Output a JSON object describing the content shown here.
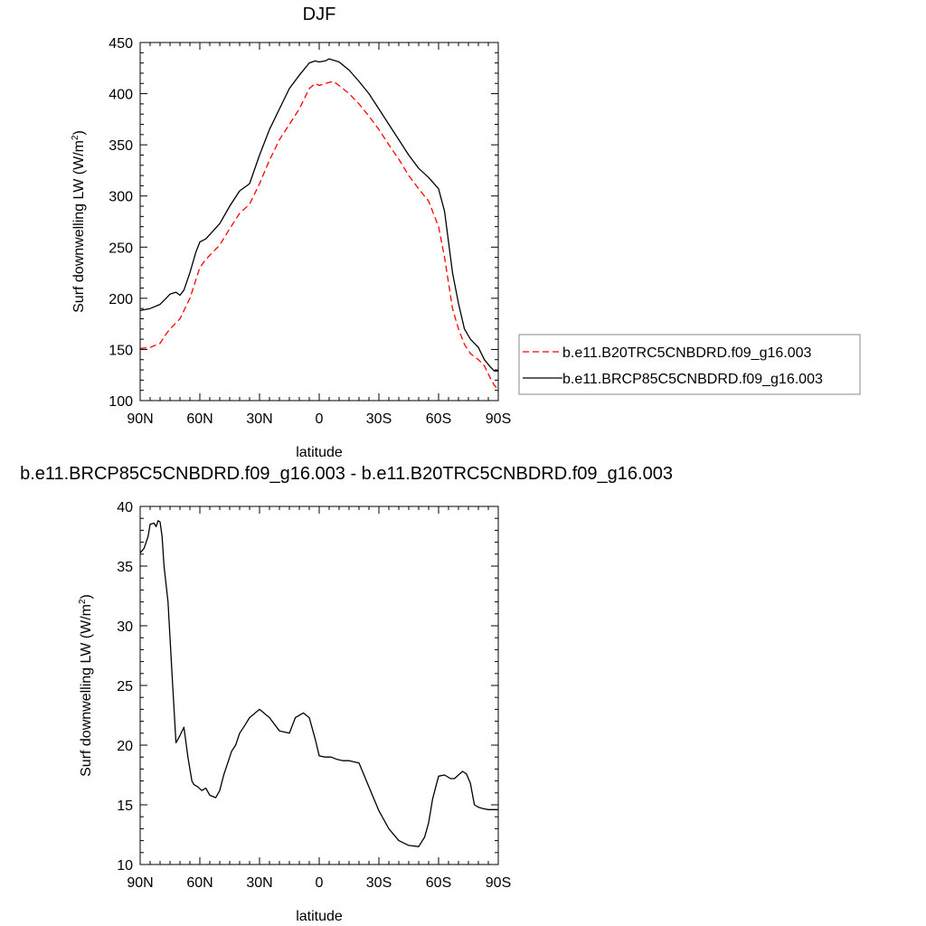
{
  "chart_data": [
    {
      "type": "line",
      "title": "DJF",
      "xlabel": "latitude",
      "ylabel": "Surf downwelling LW (W/m",
      "ylabel_sup": "2",
      "ylabel_tail": ")",
      "xlim": [
        -90,
        90
      ],
      "ylim": [
        100,
        450
      ],
      "xticks": [
        -90,
        -60,
        -30,
        0,
        30,
        60,
        90
      ],
      "xticklabels": [
        "90N",
        "60N",
        "30N",
        "0",
        "30S",
        "60S",
        "90S"
      ],
      "yticks": [
        100,
        150,
        200,
        250,
        300,
        350,
        400,
        450
      ],
      "yticklabels": [
        "100",
        "150",
        "200",
        "250",
        "300",
        "350",
        "400",
        "450"
      ],
      "legend_position": "right",
      "series": [
        {
          "name": "b.e11.B20TRC5CNBDRD.f09_g16.003",
          "color": "#ff0000",
          "dash": "dashed",
          "x": [
            -90,
            -85,
            -80,
            -77,
            -75,
            -70,
            -65,
            -60,
            -57,
            -50,
            -45,
            -40,
            -35,
            -30,
            -25,
            -20,
            -15,
            -10,
            -5,
            -2,
            0,
            3,
            7,
            10,
            15,
            20,
            25,
            30,
            35,
            40,
            45,
            50,
            55,
            60,
            63,
            65,
            67,
            70,
            73,
            76,
            80,
            83,
            86,
            88,
            90
          ],
          "y": [
            151,
            152,
            156,
            165,
            170,
            180,
            200,
            230,
            238,
            252,
            268,
            283,
            292,
            312,
            335,
            355,
            370,
            385,
            405,
            410,
            408,
            410,
            412,
            408,
            400,
            390,
            378,
            365,
            350,
            336,
            320,
            307,
            295,
            270,
            240,
            215,
            190,
            170,
            155,
            146,
            140,
            134,
            122,
            115,
            111
          ]
        },
        {
          "name": "b.e11.BRCP85C5CNBDRD.f09_g16.003",
          "color": "#000000",
          "dash": "solid",
          "x": [
            -90,
            -85,
            -80,
            -77,
            -75,
            -72,
            -70,
            -68,
            -65,
            -62,
            -60,
            -57,
            -50,
            -45,
            -40,
            -35,
            -30,
            -25,
            -20,
            -15,
            -10,
            -5,
            -2,
            0,
            3,
            5,
            10,
            15,
            20,
            25,
            30,
            35,
            40,
            45,
            50,
            55,
            60,
            63,
            65,
            67,
            70,
            73,
            76,
            80,
            83,
            86,
            88,
            90
          ],
          "y": [
            188,
            190,
            194,
            200,
            204,
            206,
            203,
            208,
            225,
            245,
            255,
            258,
            273,
            290,
            305,
            312,
            340,
            365,
            385,
            405,
            418,
            430,
            432,
            431,
            432,
            434,
            431,
            423,
            412,
            400,
            385,
            370,
            355,
            340,
            327,
            318,
            307,
            285,
            255,
            225,
            195,
            170,
            160,
            152,
            140,
            133,
            129,
            129
          ]
        }
      ]
    },
    {
      "type": "line",
      "title": "b.e11.BRCP85C5CNBDRD.f09_g16.003 - b.e11.B20TRC5CNBDRD.f09_g16.003",
      "xlabel": "latitude",
      "ylabel": "Surf downwelling LW (W/m",
      "ylabel_sup": "2",
      "ylabel_tail": ")",
      "xlim": [
        -90,
        90
      ],
      "ylim": [
        10,
        40
      ],
      "xticks": [
        -90,
        -60,
        -30,
        0,
        30,
        60,
        90
      ],
      "xticklabels": [
        "90N",
        "60N",
        "30N",
        "0",
        "30S",
        "60S",
        "90S"
      ],
      "yticks": [
        10,
        15,
        20,
        25,
        30,
        35,
        40
      ],
      "yticklabels": [
        "10",
        "15",
        "20",
        "25",
        "30",
        "35",
        "40"
      ],
      "series": [
        {
          "name": "",
          "color": "#000000",
          "dash": "solid",
          "x": [
            -90,
            -88,
            -86,
            -85,
            -83,
            -82,
            -81,
            -80,
            -79,
            -78,
            -76,
            -74,
            -72,
            -70,
            -68,
            -66,
            -64,
            -63,
            -61,
            -59,
            -57,
            -55,
            -52,
            -50,
            -48,
            -46,
            -44,
            -42,
            -40,
            -38,
            -35,
            -30,
            -25,
            -20,
            -15,
            -12,
            -8,
            -5,
            -2,
            0,
            3,
            6,
            9,
            12,
            15,
            20,
            25,
            30,
            35,
            40,
            45,
            50,
            53,
            55,
            57,
            60,
            63,
            66,
            68,
            70,
            72,
            74,
            76,
            78,
            80,
            82,
            85,
            88,
            90
          ],
          "y": [
            36.1,
            36.5,
            37.5,
            38.5,
            38.6,
            38.3,
            38.8,
            38.7,
            37.5,
            35,
            32,
            26,
            20.2,
            20.8,
            21.5,
            19,
            17,
            16.7,
            16.5,
            16.2,
            16.4,
            15.8,
            15.6,
            16.2,
            17.5,
            18.5,
            19.5,
            20,
            21,
            21.5,
            22.3,
            23,
            22.3,
            21.2,
            21,
            22.3,
            22.7,
            22.3,
            20.5,
            19.1,
            19,
            19,
            18.8,
            18.7,
            18.7,
            18.5,
            16.5,
            14.5,
            13,
            12,
            11.6,
            11.5,
            12.3,
            13.5,
            15.5,
            17.4,
            17.5,
            17.2,
            17.2,
            17.5,
            17.8,
            17.6,
            16.8,
            15,
            14.8,
            14.7,
            14.6,
            14.6,
            14.6
          ]
        }
      ]
    }
  ]
}
